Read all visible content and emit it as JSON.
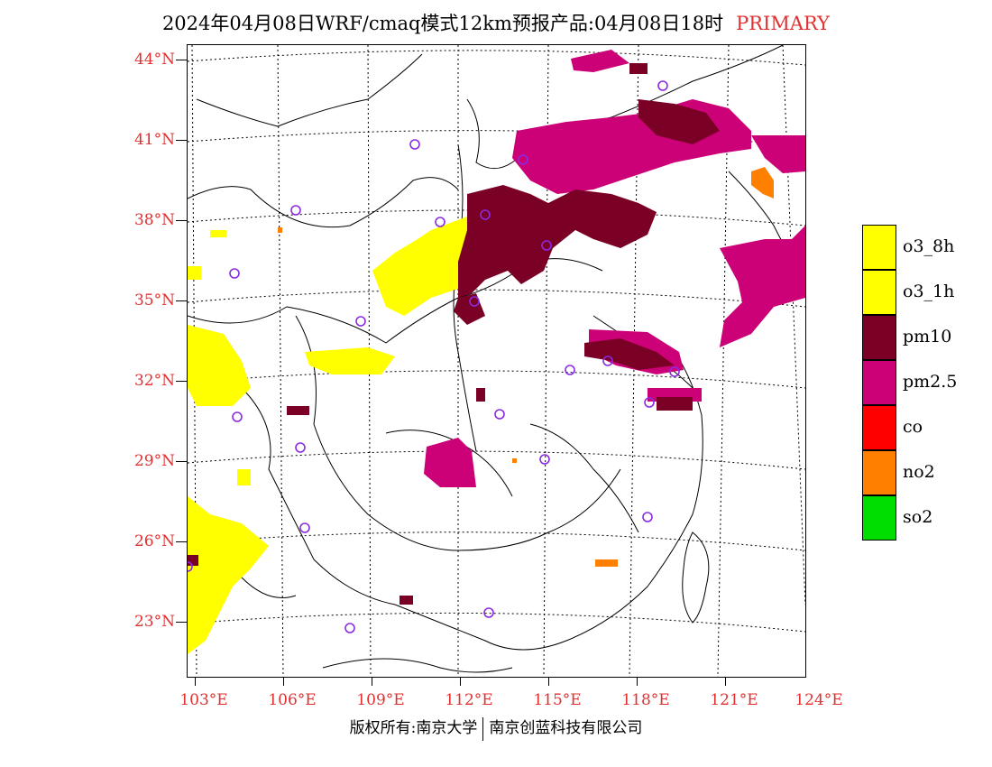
{
  "title": {
    "text": "2024年04月08日WRF/cmaq模式12km预报产品:04月08日18时",
    "tag": "PRIMARY"
  },
  "map": {
    "lat_labels": [
      "44°N",
      "41°N",
      "38°N",
      "35°N",
      "32°N",
      "29°N",
      "26°N",
      "23°N"
    ],
    "lon_labels": [
      "103°E",
      "106°E",
      "109°E",
      "112°E",
      "115°E",
      "118°E",
      "121°E",
      "124°E"
    ],
    "extent": {
      "lon_min": 103,
      "lon_max": 124,
      "lat_min": 21.5,
      "lat_max": 44.5
    },
    "colors": {
      "land_border": "#000000",
      "grid": "#000000",
      "station_marker": "#8a2be2"
    }
  },
  "legend": {
    "items": [
      {
        "label": "o3_8h",
        "color": "#ffff00"
      },
      {
        "label": "o3_1h",
        "color": "#ffff00"
      },
      {
        "label": "pm10",
        "color": "#7a0026"
      },
      {
        "label": "pm2.5",
        "color": "#cc0077"
      },
      {
        "label": "co",
        "color": "#ff0000"
      },
      {
        "label": "no2",
        "color": "#ff8000"
      },
      {
        "label": "so2",
        "color": "#00dd00"
      }
    ]
  },
  "footer": {
    "left": "版权所有:南京大学",
    "right": "南京创蓝科技有限公司"
  }
}
